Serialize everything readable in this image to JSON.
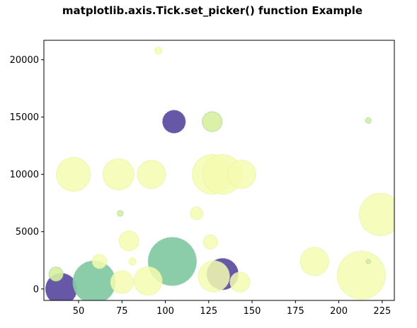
{
  "chart_data": {
    "type": "scatter",
    "title": "matplotlib.axis.Tick.set_picker() function Example",
    "xlabel": "",
    "ylabel": "",
    "xlim": [
      30,
      232
    ],
    "ylim": [
      -1000,
      21700
    ],
    "xticks": [
      50,
      75,
      100,
      125,
      150,
      175,
      200,
      225
    ],
    "yticks": [
      0,
      5000,
      10000,
      15000,
      20000
    ],
    "xtick_labels": [
      "50",
      "75",
      "100",
      "125",
      "150",
      "175",
      "200",
      "225"
    ],
    "ytick_labels": [
      "0",
      "5000",
      "10000",
      "15000",
      "20000"
    ],
    "grid": false,
    "colors": {
      "dark": "#5e4fa2",
      "green": "#85c9a4",
      "yellow": "#f5fbb0",
      "edge_yellow": "#e8f3a0",
      "edge_green": "#9fd59f"
    },
    "points": [
      {
        "x": 40,
        "y": 0,
        "size": 22,
        "color": "dark"
      },
      {
        "x": 59,
        "y": 600,
        "size": 30,
        "color": "green"
      },
      {
        "x": 104,
        "y": 2400,
        "size": 34,
        "color": "green"
      },
      {
        "x": 133,
        "y": 1300,
        "size": 22,
        "color": "dark"
      },
      {
        "x": 105,
        "y": 14600,
        "size": 16,
        "color": "dark"
      },
      {
        "x": 127,
        "y": 14600,
        "size": 14,
        "color": "green_light"
      },
      {
        "x": 127,
        "y": 10000,
        "size": 28,
        "color": "yellow"
      },
      {
        "x": 133,
        "y": 10000,
        "size": 28,
        "color": "yellow"
      },
      {
        "x": 144,
        "y": 10000,
        "size": 20,
        "color": "yellow"
      },
      {
        "x": 47,
        "y": 10000,
        "size": 24,
        "color": "yellow"
      },
      {
        "x": 73,
        "y": 10000,
        "size": 22,
        "color": "yellow"
      },
      {
        "x": 92,
        "y": 10000,
        "size": 20,
        "color": "yellow"
      },
      {
        "x": 224,
        "y": 6500,
        "size": 30,
        "color": "yellow"
      },
      {
        "x": 213,
        "y": 1200,
        "size": 34,
        "color": "yellow"
      },
      {
        "x": 186,
        "y": 2400,
        "size": 20,
        "color": "yellow"
      },
      {
        "x": 128,
        "y": 1100,
        "size": 22,
        "color": "yellow"
      },
      {
        "x": 90,
        "y": 700,
        "size": 20,
        "color": "yellow"
      },
      {
        "x": 75,
        "y": 600,
        "size": 16,
        "color": "yellow"
      },
      {
        "x": 143,
        "y": 600,
        "size": 14,
        "color": "yellow"
      },
      {
        "x": 79,
        "y": 4200,
        "size": 14,
        "color": "yellow"
      },
      {
        "x": 126,
        "y": 4100,
        "size": 10,
        "color": "yellow"
      },
      {
        "x": 118,
        "y": 6600,
        "size": 9,
        "color": "yellow"
      },
      {
        "x": 62,
        "y": 2400,
        "size": 10,
        "color": "yellow"
      },
      {
        "x": 37,
        "y": 1300,
        "size": 10,
        "color": "green_light"
      },
      {
        "x": 74,
        "y": 6600,
        "size": 4,
        "color": "green_light"
      },
      {
        "x": 96,
        "y": 20800,
        "size": 5,
        "color": "yellow"
      },
      {
        "x": 217,
        "y": 14700,
        "size": 4,
        "color": "green_light"
      },
      {
        "x": 217,
        "y": 2400,
        "size": 3,
        "color": "green_light"
      },
      {
        "x": 81,
        "y": 2400,
        "size": 5,
        "color": "yellow"
      }
    ]
  }
}
